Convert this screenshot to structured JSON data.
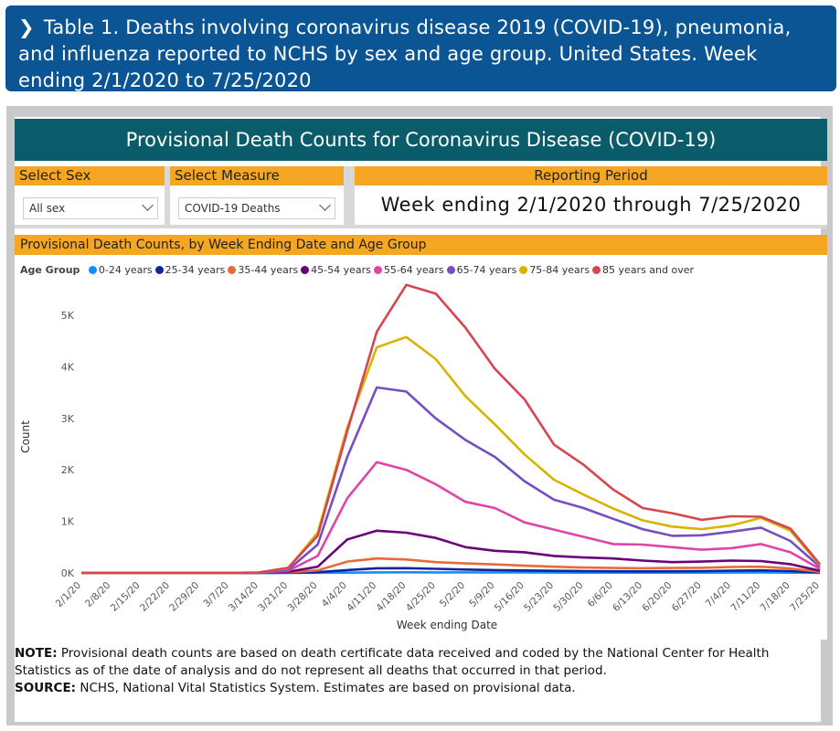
{
  "header": {
    "title": "Table 1. Deaths involving coronavirus disease 2019 (COVID-19), pneumonia, and influenza reported to NCHS by sex and age group. United States. Week ending 2/1/2020 to 7/25/2020"
  },
  "banner": {
    "title": "Provisional Death Counts for Coronavirus Disease (COVID-19)"
  },
  "filters": {
    "sex": {
      "label": "Select Sex",
      "value": "All sex"
    },
    "measure": {
      "label": "Select Measure",
      "value": "COVID-19 Deaths"
    },
    "period": {
      "label": "Reporting Period",
      "value": "Week ending 2/1/2020 through 7/25/2020"
    }
  },
  "footer": {
    "note_label": "NOTE:",
    "note_text": " Provisional death counts are based on death certificate data received and coded by the National Center for Health Statistics as of the date of analysis and do not represent all deaths that occurred in that period.",
    "source_label": "SOURCE:",
    "source_text": " NCHS, National Vital Statistics System. Estimates are based on provisional data."
  },
  "colors": {
    "header_bg": "#0b5594",
    "banner_bg": "#0b5c6b",
    "accent": "#f5a623"
  },
  "chart_data": {
    "type": "line",
    "title": "Provisional Death Counts, by Week Ending Date and Age Group",
    "legend_title": "Age Group",
    "legend_position": "top-left",
    "xlabel": "Week ending Date",
    "ylabel": "Count",
    "ylim": [
      0,
      5800
    ],
    "yticks": [
      0,
      1000,
      2000,
      3000,
      4000,
      5000
    ],
    "ytick_labels": [
      "0K",
      "1K",
      "2K",
      "3K",
      "4K",
      "5K"
    ],
    "grid": false,
    "x": [
      "2/1/20",
      "2/8/20",
      "2/15/20",
      "2/22/20",
      "2/29/20",
      "3/7/20",
      "3/14/20",
      "3/21/20",
      "3/28/20",
      "4/4/20",
      "4/11/20",
      "4/18/20",
      "4/25/20",
      "5/2/20",
      "5/9/20",
      "5/16/20",
      "5/23/20",
      "5/30/20",
      "6/6/20",
      "6/13/20",
      "6/20/20",
      "6/27/20",
      "7/4/20",
      "7/11/20",
      "7/18/20",
      "7/25/20"
    ],
    "series": [
      {
        "name": "0-24 years",
        "color": "#118dff",
        "values": [
          0,
          0,
          0,
          0,
          0,
          0,
          0,
          1,
          3,
          6,
          10,
          12,
          11,
          10,
          9,
          8,
          7,
          6,
          6,
          5,
          6,
          6,
          7,
          8,
          6,
          2
        ]
      },
      {
        "name": "25-34 years",
        "color": "#12239e",
        "values": [
          0,
          0,
          0,
          0,
          0,
          0,
          0,
          3,
          15,
          55,
          90,
          92,
          80,
          65,
          55,
          48,
          40,
          35,
          32,
          30,
          32,
          35,
          45,
          50,
          35,
          8
        ]
      },
      {
        "name": "35-44 years",
        "color": "#e66c37",
        "values": [
          0,
          0,
          0,
          0,
          0,
          0,
          2,
          8,
          50,
          220,
          280,
          260,
          210,
          185,
          165,
          140,
          120,
          105,
          95,
          90,
          95,
          100,
          115,
          120,
          85,
          20
        ]
      },
      {
        "name": "45-54 years",
        "color": "#6b007b",
        "values": [
          0,
          0,
          0,
          0,
          0,
          0,
          3,
          20,
          120,
          650,
          820,
          780,
          680,
          500,
          430,
          400,
          330,
          300,
          280,
          240,
          210,
          220,
          240,
          230,
          170,
          40
        ]
      },
      {
        "name": "55-64 years",
        "color": "#e044a7",
        "values": [
          0,
          0,
          0,
          0,
          0,
          0,
          5,
          40,
          330,
          1450,
          2150,
          2000,
          1720,
          1380,
          1260,
          980,
          840,
          700,
          560,
          550,
          500,
          450,
          480,
          560,
          400,
          80
        ]
      },
      {
        "name": "65-74 years",
        "color": "#744ec2",
        "values": [
          0,
          0,
          0,
          0,
          0,
          0,
          6,
          60,
          550,
          2250,
          3600,
          3520,
          3000,
          2580,
          2250,
          1780,
          1420,
          1260,
          1050,
          850,
          720,
          730,
          800,
          880,
          620,
          120
        ]
      },
      {
        "name": "75-84 years",
        "color": "#d9b300",
        "values": [
          0,
          0,
          0,
          0,
          0,
          0,
          8,
          90,
          780,
          2820,
          4380,
          4580,
          4150,
          3430,
          2880,
          2300,
          1810,
          1520,
          1250,
          1020,
          900,
          850,
          920,
          1070,
          820,
          150
        ]
      },
      {
        "name": "85 years and over",
        "color": "#d64550",
        "values": [
          0,
          0,
          0,
          0,
          0,
          0,
          8,
          100,
          720,
          2750,
          4680,
          5590,
          5420,
          4760,
          3960,
          3370,
          2490,
          2100,
          1620,
          1260,
          1160,
          1030,
          1100,
          1090,
          860,
          170
        ]
      }
    ]
  }
}
